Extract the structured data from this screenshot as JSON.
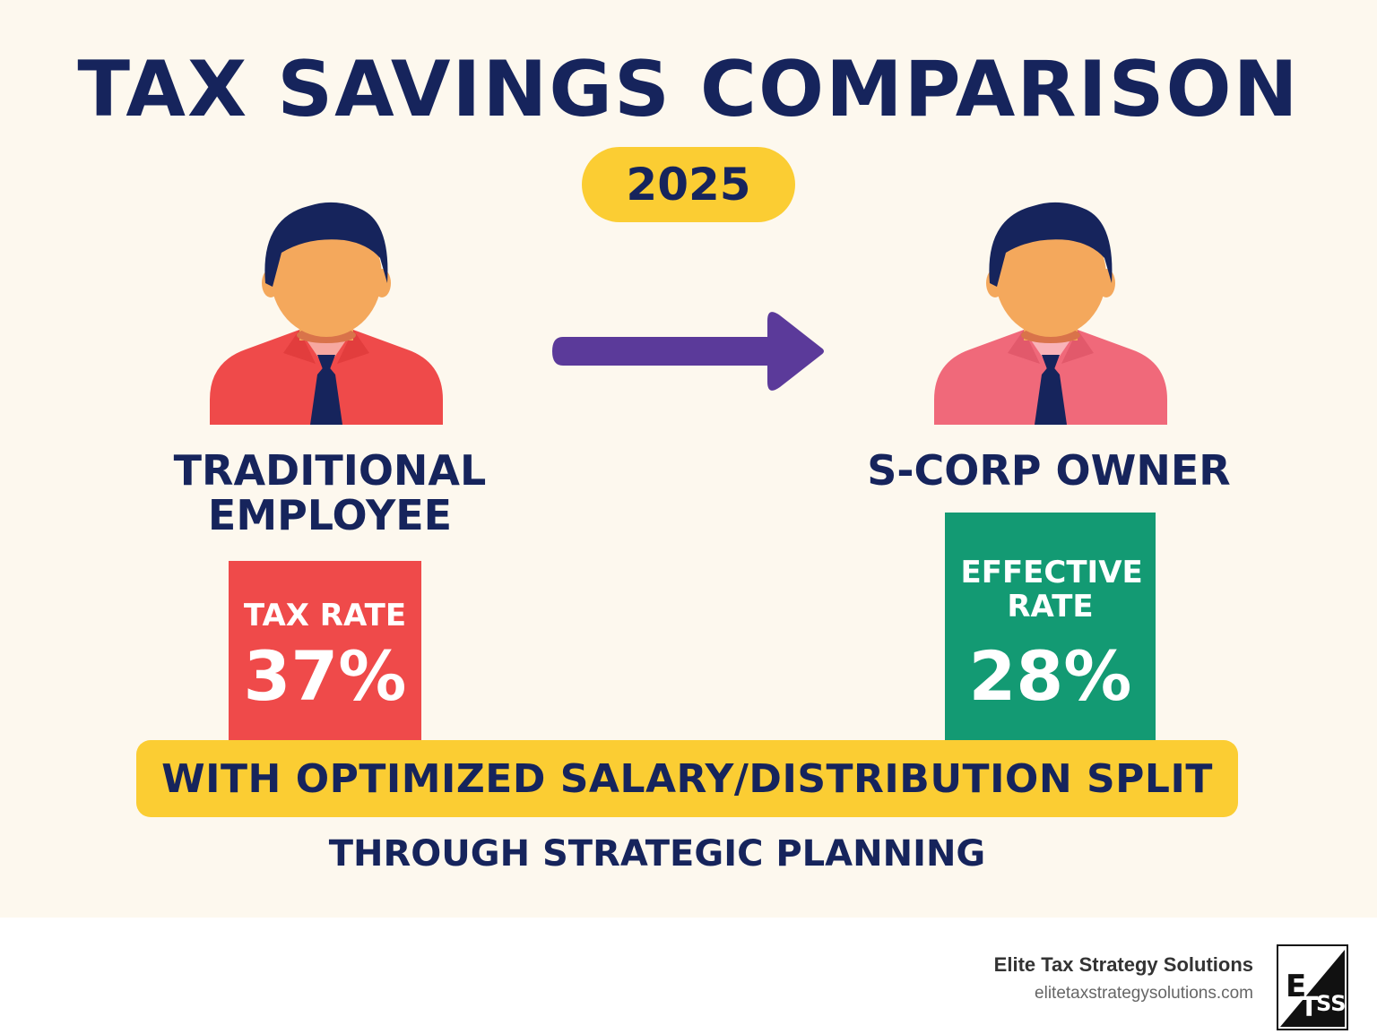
{
  "title": "TAX SAVINGS COMPARISON",
  "year": "2025",
  "left": {
    "label_line1": "TRADITIONAL",
    "label_line2": "EMPLOYEE",
    "rate_caption": "TAX RATE",
    "rate_value": "37%",
    "box_color": "#ef4a4a",
    "shirt_color": "#ef4a4a"
  },
  "right": {
    "label": "S-CORP OWNER",
    "rate_caption": "EFFECTIVE RATE",
    "rate_value": "28%",
    "box_color": "#139a73",
    "shirt_color": "#f0697a"
  },
  "banner": "WITH OPTIMIZED SALARY/DISTRIBUTION SPLIT",
  "subline": "THROUGH STRATEGIC PLANNING",
  "footer": {
    "brand_name": "Elite Tax Strategy Solutions",
    "brand_url": "elitetaxstrategysolutions.com",
    "logo_text": "ETSS"
  },
  "icons": [
    "person-icon",
    "arrow-right-icon",
    "brand-logo-icon"
  ],
  "colors": {
    "navy": "#16245c",
    "yellow": "#fbcd33",
    "purple": "#5b3a9a",
    "background": "#fdf8ee"
  }
}
